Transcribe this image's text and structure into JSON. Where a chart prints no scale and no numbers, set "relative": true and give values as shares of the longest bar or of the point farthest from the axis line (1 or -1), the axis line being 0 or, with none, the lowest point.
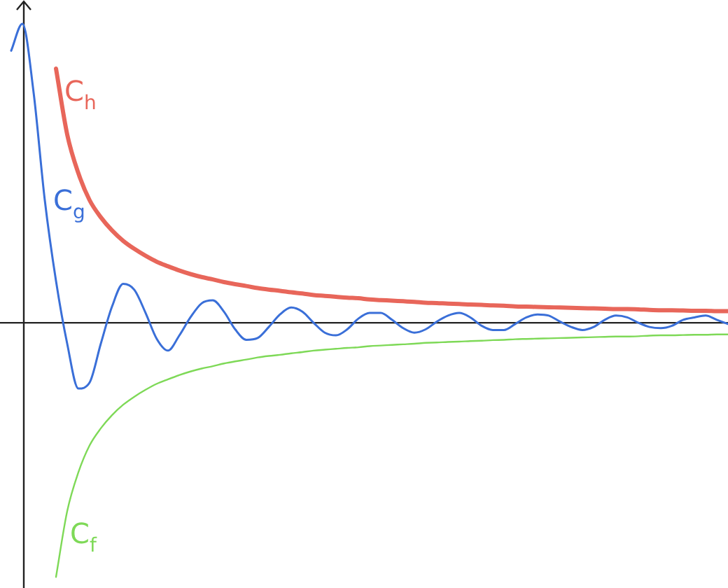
{
  "chart_data": {
    "type": "line",
    "relative": true,
    "legend": false,
    "tick_labels": false,
    "marker": "none",
    "line_style": "solid",
    "categories": [
      null,
      null,
      null,
      null,
      null,
      null,
      null,
      null,
      null,
      null,
      null,
      null,
      null,
      null,
      null,
      null,
      null,
      null,
      null,
      null,
      null,
      null,
      null,
      null,
      null,
      null,
      null,
      null,
      null,
      null,
      null,
      null,
      null,
      null,
      null,
      null,
      null,
      null,
      null,
      null,
      null,
      null,
      null,
      null,
      null,
      null,
      null,
      null,
      null,
      null,
      null,
      null,
      null,
      null,
      null,
      null,
      null,
      null,
      null,
      null,
      null,
      null,
      null,
      null,
      null,
      null
    ],
    "series": [
      {
        "name": "C$_{h}$",
        "color": "#e8665a",
        "values": [
          null,
          null,
          null,
          null,
          null,
          0.85,
          0.63,
          0.5,
          0.41,
          0.353,
          0.309,
          0.274,
          0.247,
          0.224,
          0.204,
          0.189,
          0.175,
          0.163,
          0.153,
          0.145,
          0.136,
          0.129,
          0.123,
          0.116,
          0.111,
          0.107,
          0.102,
          0.098,
          0.093,
          0.09,
          0.087,
          0.084,
          0.082,
          0.078,
          0.076,
          0.074,
          0.072,
          0.07,
          0.067,
          0.066,
          0.064,
          0.063,
          0.061,
          0.06,
          0.058,
          0.057,
          0.055,
          0.054,
          0.053,
          0.052,
          0.051,
          0.05,
          0.049,
          0.048,
          0.047,
          0.046,
          0.046,
          0.045,
          0.043,
          0.042,
          0.042,
          0.041,
          0.04,
          0.04,
          0.039,
          0.039
        ]
      },
      {
        "name": "C$_{g}$",
        "color": "#3a6fd8",
        "values": [
          null,
          0.91,
          1,
          0.77,
          0.41,
          0.14,
          -0.07,
          -0.22,
          -0.2,
          -0.07,
          0.054,
          0.13,
          0.11,
          0.033,
          -0.054,
          -0.093,
          -0.043,
          0.018,
          0.065,
          0.075,
          0.037,
          -0.022,
          -0.057,
          -0.051,
          -0.014,
          0.028,
          0.051,
          0.037,
          0,
          -0.033,
          -0.042,
          -0.022,
          0.014,
          0.033,
          0.033,
          0.01,
          -0.018,
          -0.033,
          -0.022,
          0.004,
          0.024,
          0.033,
          0.018,
          -0.01,
          -0.024,
          -0.024,
          -0.004,
          0.018,
          0.028,
          0.024,
          0.004,
          -0.014,
          -0.024,
          -0.014,
          0.01,
          0.024,
          0.018,
          0,
          -0.014,
          -0.018,
          -0.01,
          0.01,
          0.018,
          0.024,
          0.01,
          -0.004
        ]
      },
      {
        "name": "C$_{f}$",
        "color": "#7ed957",
        "values": [
          null,
          null,
          null,
          null,
          null,
          -0.85,
          -0.63,
          -0.5,
          -0.41,
          -0.353,
          -0.309,
          -0.274,
          -0.247,
          -0.224,
          -0.204,
          -0.189,
          -0.175,
          -0.163,
          -0.153,
          -0.145,
          -0.136,
          -0.129,
          -0.123,
          -0.116,
          -0.111,
          -0.107,
          -0.102,
          -0.098,
          -0.093,
          -0.09,
          -0.087,
          -0.084,
          -0.082,
          -0.078,
          -0.076,
          -0.074,
          -0.072,
          -0.07,
          -0.067,
          -0.066,
          -0.064,
          -0.063,
          -0.061,
          -0.06,
          -0.058,
          -0.057,
          -0.055,
          -0.054,
          -0.053,
          -0.052,
          -0.051,
          -0.05,
          -0.049,
          -0.048,
          -0.047,
          -0.046,
          -0.046,
          -0.045,
          -0.043,
          -0.042,
          -0.042,
          -0.041,
          -0.04,
          -0.04,
          -0.039,
          -0.039
        ]
      }
    ]
  }
}
